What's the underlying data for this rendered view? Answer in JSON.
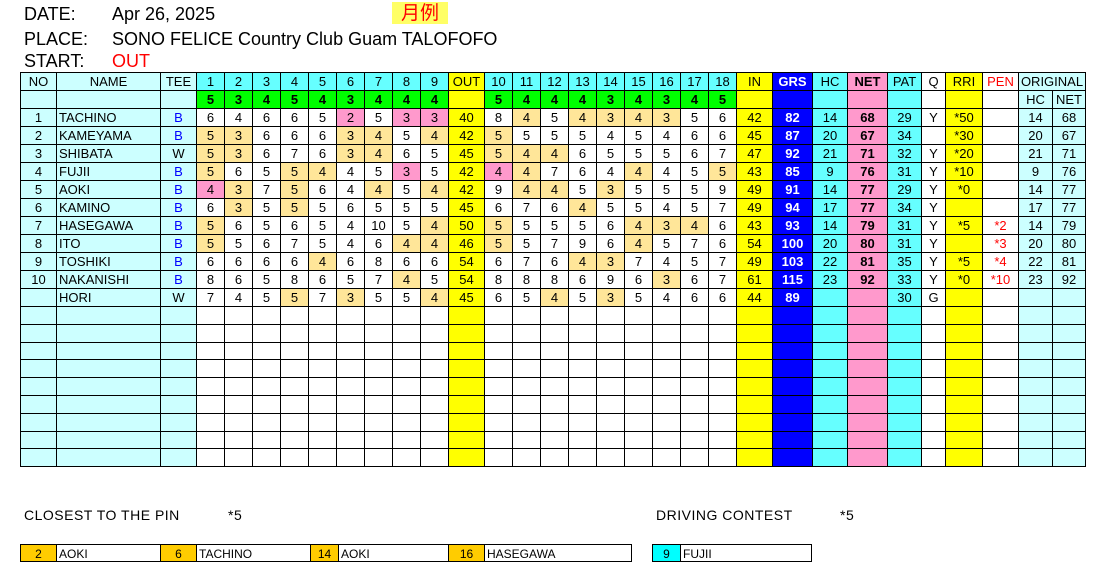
{
  "header": {
    "date_label": "DATE:",
    "date": "Apr 26, 2025",
    "badge": "月例",
    "place_label": "PLACE:",
    "place": "SONO FELICE Country Club Guam TALOFOFO",
    "start_label": "START:",
    "start": "OUT"
  },
  "columns": {
    "no": "NO",
    "name": "NAME",
    "tee": "TEE",
    "holes": [
      "1",
      "2",
      "3",
      "4",
      "5",
      "6",
      "7",
      "8",
      "9",
      "10",
      "11",
      "12",
      "13",
      "14",
      "15",
      "16",
      "17",
      "18"
    ],
    "out": "OUT",
    "in": "IN",
    "grs": "GRS",
    "hc": "HC",
    "net": "NET",
    "pat": "PAT",
    "q": "Q",
    "rri": "RRI",
    "pen": "PEN",
    "original": "ORIGINAL",
    "orig_hc": "HC",
    "orig_net": "NET"
  },
  "par": [
    5,
    3,
    4,
    5,
    4,
    3,
    4,
    4,
    4,
    5,
    4,
    4,
    4,
    3,
    4,
    3,
    4,
    5
  ],
  "players": [
    {
      "no": "1",
      "name": "TACHINO",
      "tee": "B",
      "scores": [
        6,
        4,
        6,
        6,
        5,
        2,
        5,
        3,
        3,
        8,
        4,
        5,
        4,
        3,
        4,
        3,
        5,
        6
      ],
      "out": "40",
      "in": "42",
      "grs": "82",
      "hc": "14",
      "net": "68",
      "pat": "29",
      "q": "Y",
      "rri": "*50",
      "pen": "",
      "orig_hc": "14",
      "orig_net": "68"
    },
    {
      "no": "2",
      "name": "KAMEYAMA",
      "tee": "B",
      "scores": [
        5,
        3,
        6,
        6,
        6,
        3,
        4,
        5,
        4,
        5,
        5,
        5,
        5,
        4,
        5,
        4,
        6,
        6
      ],
      "out": "42",
      "in": "45",
      "grs": "87",
      "hc": "20",
      "net": "67",
      "pat": "34",
      "q": "",
      "rri": "*30",
      "pen": "",
      "orig_hc": "20",
      "orig_net": "67"
    },
    {
      "no": "3",
      "name": "SHIBATA",
      "tee": "W",
      "scores": [
        5,
        3,
        6,
        7,
        6,
        3,
        4,
        6,
        5,
        5,
        4,
        4,
        6,
        5,
        5,
        5,
        6,
        7
      ],
      "out": "45",
      "in": "47",
      "grs": "92",
      "hc": "21",
      "net": "71",
      "pat": "32",
      "q": "Y",
      "rri": "*20",
      "pen": "",
      "orig_hc": "21",
      "orig_net": "71"
    },
    {
      "no": "4",
      "name": "FUJII",
      "tee": "B",
      "scores": [
        5,
        6,
        5,
        5,
        4,
        4,
        5,
        3,
        5,
        4,
        4,
        7,
        6,
        4,
        4,
        4,
        5,
        5
      ],
      "out": "42",
      "in": "43",
      "grs": "85",
      "hc": "9",
      "net": "76",
      "pat": "31",
      "q": "Y",
      "rri": "*10",
      "pen": "",
      "orig_hc": "9",
      "orig_net": "76"
    },
    {
      "no": "5",
      "name": "AOKI",
      "tee": "B",
      "scores": [
        4,
        3,
        7,
        5,
        6,
        4,
        4,
        5,
        4,
        9,
        4,
        4,
        5,
        3,
        5,
        5,
        5,
        9
      ],
      "out": "42",
      "in": "49",
      "grs": "91",
      "hc": "14",
      "net": "77",
      "pat": "29",
      "q": "Y",
      "rri": "*0",
      "pen": "",
      "orig_hc": "14",
      "orig_net": "77"
    },
    {
      "no": "6",
      "name": "KAMINO",
      "tee": "B",
      "scores": [
        6,
        3,
        5,
        5,
        5,
        6,
        5,
        5,
        5,
        6,
        7,
        6,
        4,
        5,
        5,
        4,
        5,
        7
      ],
      "out": "45",
      "in": "49",
      "grs": "94",
      "hc": "17",
      "net": "77",
      "pat": "34",
      "q": "Y",
      "rri": "",
      "pen": "",
      "orig_hc": "17",
      "orig_net": "77"
    },
    {
      "no": "7",
      "name": "HASEGAWA",
      "tee": "B",
      "scores": [
        5,
        6,
        5,
        6,
        5,
        4,
        10,
        5,
        4,
        5,
        5,
        5,
        5,
        6,
        4,
        3,
        4,
        6
      ],
      "out": "50",
      "in": "43",
      "grs": "93",
      "hc": "14",
      "net": "79",
      "pat": "31",
      "q": "Y",
      "rri": "*5",
      "pen": "*2",
      "orig_hc": "14",
      "orig_net": "79"
    },
    {
      "no": "8",
      "name": "ITO",
      "tee": "B",
      "scores": [
        5,
        5,
        6,
        7,
        5,
        4,
        6,
        4,
        4,
        5,
        5,
        7,
        9,
        6,
        4,
        5,
        7,
        6
      ],
      "out": "46",
      "in": "54",
      "grs": "100",
      "hc": "20",
      "net": "80",
      "pat": "31",
      "q": "Y",
      "rri": "",
      "pen": "*3",
      "orig_hc": "20",
      "orig_net": "80"
    },
    {
      "no": "9",
      "name": "TOSHIKI",
      "tee": "B",
      "scores": [
        6,
        6,
        6,
        6,
        4,
        6,
        8,
        6,
        6,
        6,
        7,
        6,
        4,
        3,
        7,
        4,
        5,
        7
      ],
      "out": "54",
      "in": "49",
      "grs": "103",
      "hc": "22",
      "net": "81",
      "pat": "35",
      "q": "Y",
      "rri": "*5",
      "pen": "*4",
      "orig_hc": "22",
      "orig_net": "81"
    },
    {
      "no": "10",
      "name": "NAKANISHI",
      "tee": "B",
      "scores": [
        8,
        6,
        5,
        8,
        6,
        5,
        7,
        4,
        5,
        8,
        8,
        8,
        6,
        9,
        6,
        3,
        6,
        7
      ],
      "out": "54",
      "in": "61",
      "grs": "115",
      "hc": "23",
      "net": "92",
      "pat": "33",
      "q": "Y",
      "rri": "*0",
      "pen": "*10",
      "orig_hc": "23",
      "orig_net": "92"
    },
    {
      "no": "",
      "name": "HORI",
      "tee": "W",
      "scores": [
        7,
        4,
        5,
        5,
        7,
        3,
        5,
        5,
        4,
        6,
        5,
        4,
        5,
        3,
        5,
        4,
        6,
        6
      ],
      "out": "45",
      "in": "44",
      "grs": "89",
      "hc": "",
      "net": "",
      "pat": "30",
      "q": "G",
      "rri": "",
      "pen": "",
      "orig_hc": "",
      "orig_net": ""
    }
  ],
  "footer": {
    "closest_label": "CLOSEST TO THE PIN",
    "closest_mark": "*5",
    "driving_label": "DRIVING CONTEST",
    "driving_mark": "*5",
    "closest": [
      {
        "hole": "2",
        "name": "AOKI"
      },
      {
        "hole": "6",
        "name": "TACHINO"
      },
      {
        "hole": "14",
        "name": "AOKI"
      },
      {
        "hole": "16",
        "name": "HASEGAWA"
      }
    ],
    "driving": [
      {
        "hole": "9",
        "name": "FUJII"
      }
    ]
  },
  "colors": {
    "hole_header": "#66ffff",
    "name_col": "#ccffff",
    "par": "#00ff00",
    "subtotal": "#ffff00",
    "gross": "#0000ff",
    "net": "#ff99cc",
    "par_score": "#ffe699",
    "birdie": "#ff99cc",
    "closest_hole": "#ffcc00",
    "driving_hole": "#00ffff"
  }
}
